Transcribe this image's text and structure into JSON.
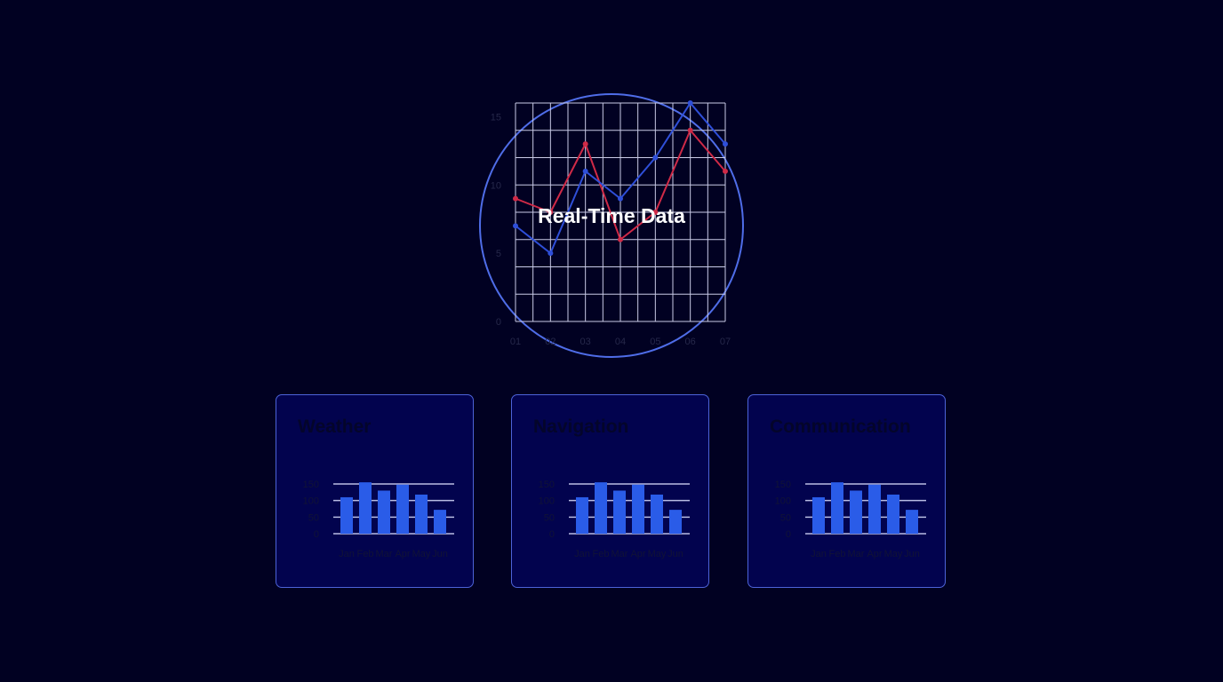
{
  "hero": {
    "title": "Real-Time Data",
    "chart_data": {
      "type": "line",
      "x": [
        "01",
        "02",
        "03",
        "04",
        "05",
        "06",
        "07"
      ],
      "yticks": [
        0,
        5,
        10,
        15
      ],
      "ylim": [
        0,
        16
      ],
      "grid": true,
      "series": [
        {
          "color": "#cf2a47",
          "values": [
            9,
            8,
            13,
            6,
            8,
            14,
            11
          ]
        },
        {
          "color": "#2f4fd9",
          "values": [
            7,
            5,
            11,
            9,
            12,
            16,
            13
          ]
        }
      ]
    }
  },
  "cards": [
    {
      "title": "Weather",
      "chart_data": {
        "type": "bar",
        "categories": [
          "Jan",
          "Feb",
          "Mar",
          "Apr",
          "May",
          "Jun"
        ],
        "values": [
          110,
          155,
          130,
          148,
          118,
          72
        ],
        "yticks": [
          0,
          50,
          100,
          150
        ],
        "ylim": [
          0,
          150
        ],
        "bar_color": "#2a5ce8"
      }
    },
    {
      "title": "Navigation",
      "chart_data": {
        "type": "bar",
        "categories": [
          "Jan",
          "Feb",
          "Mar",
          "Apr",
          "May",
          "Jun"
        ],
        "values": [
          110,
          155,
          130,
          148,
          118,
          72
        ],
        "yticks": [
          0,
          50,
          100,
          150
        ],
        "ylim": [
          0,
          150
        ],
        "bar_color": "#2a5ce8"
      }
    },
    {
      "title": "Communication",
      "chart_data": {
        "type": "bar",
        "categories": [
          "Jan",
          "Feb",
          "Mar",
          "Apr",
          "May",
          "Jun"
        ],
        "values": [
          110,
          155,
          130,
          148,
          118,
          72
        ],
        "yticks": [
          0,
          50,
          100,
          150
        ],
        "ylim": [
          0,
          150
        ],
        "bar_color": "#2a5ce8"
      }
    }
  ]
}
